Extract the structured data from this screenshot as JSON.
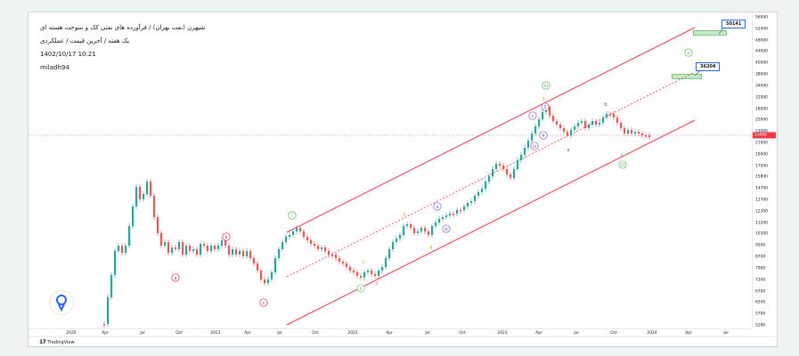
{
  "header": {
    "symbol_line": "شپهرن (نفت بهران) / فرآورده های نفتی کک و سوخت هسته ای",
    "interval_line": "یک هفته / آخرین قیمت / عملکردی",
    "datetime": "1402/10/17 10:21",
    "author": "miladh94"
  },
  "targets": {
    "upper": "50141",
    "middle": "36204"
  },
  "last_price": {
    "label": "23458",
    "color": "#f23645"
  },
  "price_scale": [
    "56000",
    "52000",
    "48000",
    "44000",
    "40000",
    "38000",
    "34000",
    "31000",
    "28000",
    "25000",
    "23000",
    "21000",
    "19000",
    "17500",
    "15800",
    "14700",
    "13700",
    "12300",
    "11200",
    "10300",
    "9500",
    "8700",
    "7900",
    "7300",
    "6700",
    "6200",
    "5700",
    "5280"
  ],
  "time_scale": [
    "2020",
    "Apr",
    "Jul",
    "Oct",
    "2021",
    "Apr",
    "Jul",
    "Oct",
    "2022",
    "Apr",
    "Jul",
    "Oct",
    "2023",
    "Apr",
    "Jul",
    "Oct",
    "2024",
    "Apr",
    "Jul"
  ],
  "wave_labels": [
    "i",
    "a",
    "b",
    "c",
    "ii",
    "iii",
    "iv",
    "v",
    "a",
    "b",
    "c",
    "1",
    "2",
    "3",
    "4",
    "a",
    "b",
    "c",
    "3",
    "4",
    "5",
    "(2)"
  ],
  "footer": {
    "brand": "TradingView",
    "logo_glyph": "17"
  },
  "colors": {
    "bull": "#26a69a",
    "bear": "#ef5350",
    "channel": "#f23645",
    "target_border": "#2962ff",
    "zone": "#66bb6a"
  },
  "icons": {
    "wave_tool": "bulb-icon"
  }
}
